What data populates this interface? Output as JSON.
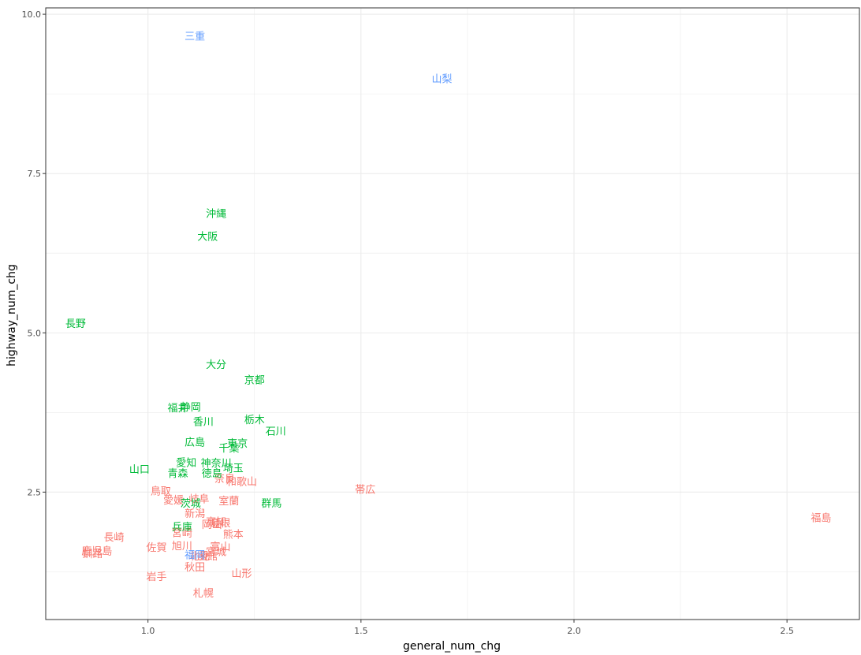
{
  "chart_data": {
    "type": "scatter",
    "title": "",
    "xlabel": "general_num_chg",
    "ylabel": "highway_num_chg",
    "xlim": [
      0.76,
      2.67
    ],
    "ylim": [
      0.5,
      10.1
    ],
    "x_ticks": [
      1.0,
      1.5,
      2.0,
      2.5
    ],
    "x_tick_labels": [
      "1.0",
      "1.5",
      "2.0",
      "2.5"
    ],
    "y_ticks": [
      2.5,
      5.0,
      7.5,
      10.0
    ],
    "y_tick_labels": [
      "2.5",
      "5.0",
      "7.5",
      "10.0"
    ],
    "y_minor_ticks": [
      1.25,
      3.75,
      6.25,
      8.75
    ],
    "x_minor_ticks": [
      1.25,
      1.75,
      2.25
    ],
    "grid": true,
    "legend": "none",
    "groups": [
      {
        "color": "#F8766D",
        "points": [
          {
            "label": "福島",
            "x": 2.58,
            "y": 2.1
          },
          {
            "label": "帯広",
            "x": 1.51,
            "y": 2.55
          },
          {
            "label": "鳥取",
            "x": 1.03,
            "y": 2.52
          },
          {
            "label": "愛媛",
            "x": 1.06,
            "y": 2.38
          },
          {
            "label": "岐阜",
            "x": 1.12,
            "y": 2.4
          },
          {
            "label": "室蘭",
            "x": 1.19,
            "y": 2.37
          },
          {
            "label": "奈良",
            "x": 1.18,
            "y": 2.72
          },
          {
            "label": "和歌山",
            "x": 1.22,
            "y": 2.67
          },
          {
            "label": "新潟",
            "x": 1.11,
            "y": 2.17
          },
          {
            "label": "高知",
            "x": 1.16,
            "y": 2.04
          },
          {
            "label": "島根",
            "x": 1.17,
            "y": 2.02
          },
          {
            "label": "岡山",
            "x": 1.15,
            "y": 2.0
          },
          {
            "label": "宮崎",
            "x": 1.08,
            "y": 1.87
          },
          {
            "label": "熊本",
            "x": 1.2,
            "y": 1.84
          },
          {
            "label": "長崎",
            "x": 0.92,
            "y": 1.8
          },
          {
            "label": "佐賀",
            "x": 1.02,
            "y": 1.64
          },
          {
            "label": "旭川",
            "x": 1.08,
            "y": 1.66
          },
          {
            "label": "富山",
            "x": 1.17,
            "y": 1.65
          },
          {
            "label": "鹿児島",
            "x": 0.88,
            "y": 1.58
          },
          {
            "label": "釧路",
            "x": 0.87,
            "y": 1.54
          },
          {
            "label": "宮城",
            "x": 1.16,
            "y": 1.57
          },
          {
            "label": "北見",
            "x": 1.12,
            "y": 1.5
          },
          {
            "label": "函館",
            "x": 1.14,
            "y": 1.5
          },
          {
            "label": "秋田",
            "x": 1.11,
            "y": 1.33
          },
          {
            "label": "山形",
            "x": 1.22,
            "y": 1.23
          },
          {
            "label": "岩手",
            "x": 1.02,
            "y": 1.18
          },
          {
            "label": "札幌",
            "x": 1.13,
            "y": 0.92
          }
        ]
      },
      {
        "color": "#00BA38",
        "points": [
          {
            "label": "沖縄",
            "x": 1.16,
            "y": 6.88
          },
          {
            "label": "大阪",
            "x": 1.14,
            "y": 6.52
          },
          {
            "label": "長野",
            "x": 0.83,
            "y": 5.15
          },
          {
            "label": "大分",
            "x": 1.16,
            "y": 4.51
          },
          {
            "label": "京都",
            "x": 1.25,
            "y": 4.27
          },
          {
            "label": "福井",
            "x": 1.07,
            "y": 3.83
          },
          {
            "label": "静岡",
            "x": 1.1,
            "y": 3.84
          },
          {
            "label": "栃木",
            "x": 1.25,
            "y": 3.64
          },
          {
            "label": "香川",
            "x": 1.13,
            "y": 3.61
          },
          {
            "label": "石川",
            "x": 1.3,
            "y": 3.46
          },
          {
            "label": "広島",
            "x": 1.11,
            "y": 3.29
          },
          {
            "label": "東京",
            "x": 1.21,
            "y": 3.27
          },
          {
            "label": "千葉",
            "x": 1.19,
            "y": 3.2
          },
          {
            "label": "愛知",
            "x": 1.09,
            "y": 2.97
          },
          {
            "label": "神奈川",
            "x": 1.16,
            "y": 2.96
          },
          {
            "label": "山口",
            "x": 0.98,
            "y": 2.86
          },
          {
            "label": "埼玉",
            "x": 1.2,
            "y": 2.88
          },
          {
            "label": "青森",
            "x": 1.07,
            "y": 2.8
          },
          {
            "label": "徳島",
            "x": 1.15,
            "y": 2.8
          },
          {
            "label": "群馬",
            "x": 1.29,
            "y": 2.33
          },
          {
            "label": "茨城",
            "x": 1.1,
            "y": 2.33
          },
          {
            "label": "兵庫",
            "x": 1.08,
            "y": 1.96
          }
        ]
      },
      {
        "color": "#619CFF",
        "points": [
          {
            "label": "三重",
            "x": 1.11,
            "y": 9.66
          },
          {
            "label": "山梨",
            "x": 1.69,
            "y": 8.99
          },
          {
            "label": "福岡",
            "x": 1.11,
            "y": 1.52
          }
        ]
      }
    ]
  }
}
